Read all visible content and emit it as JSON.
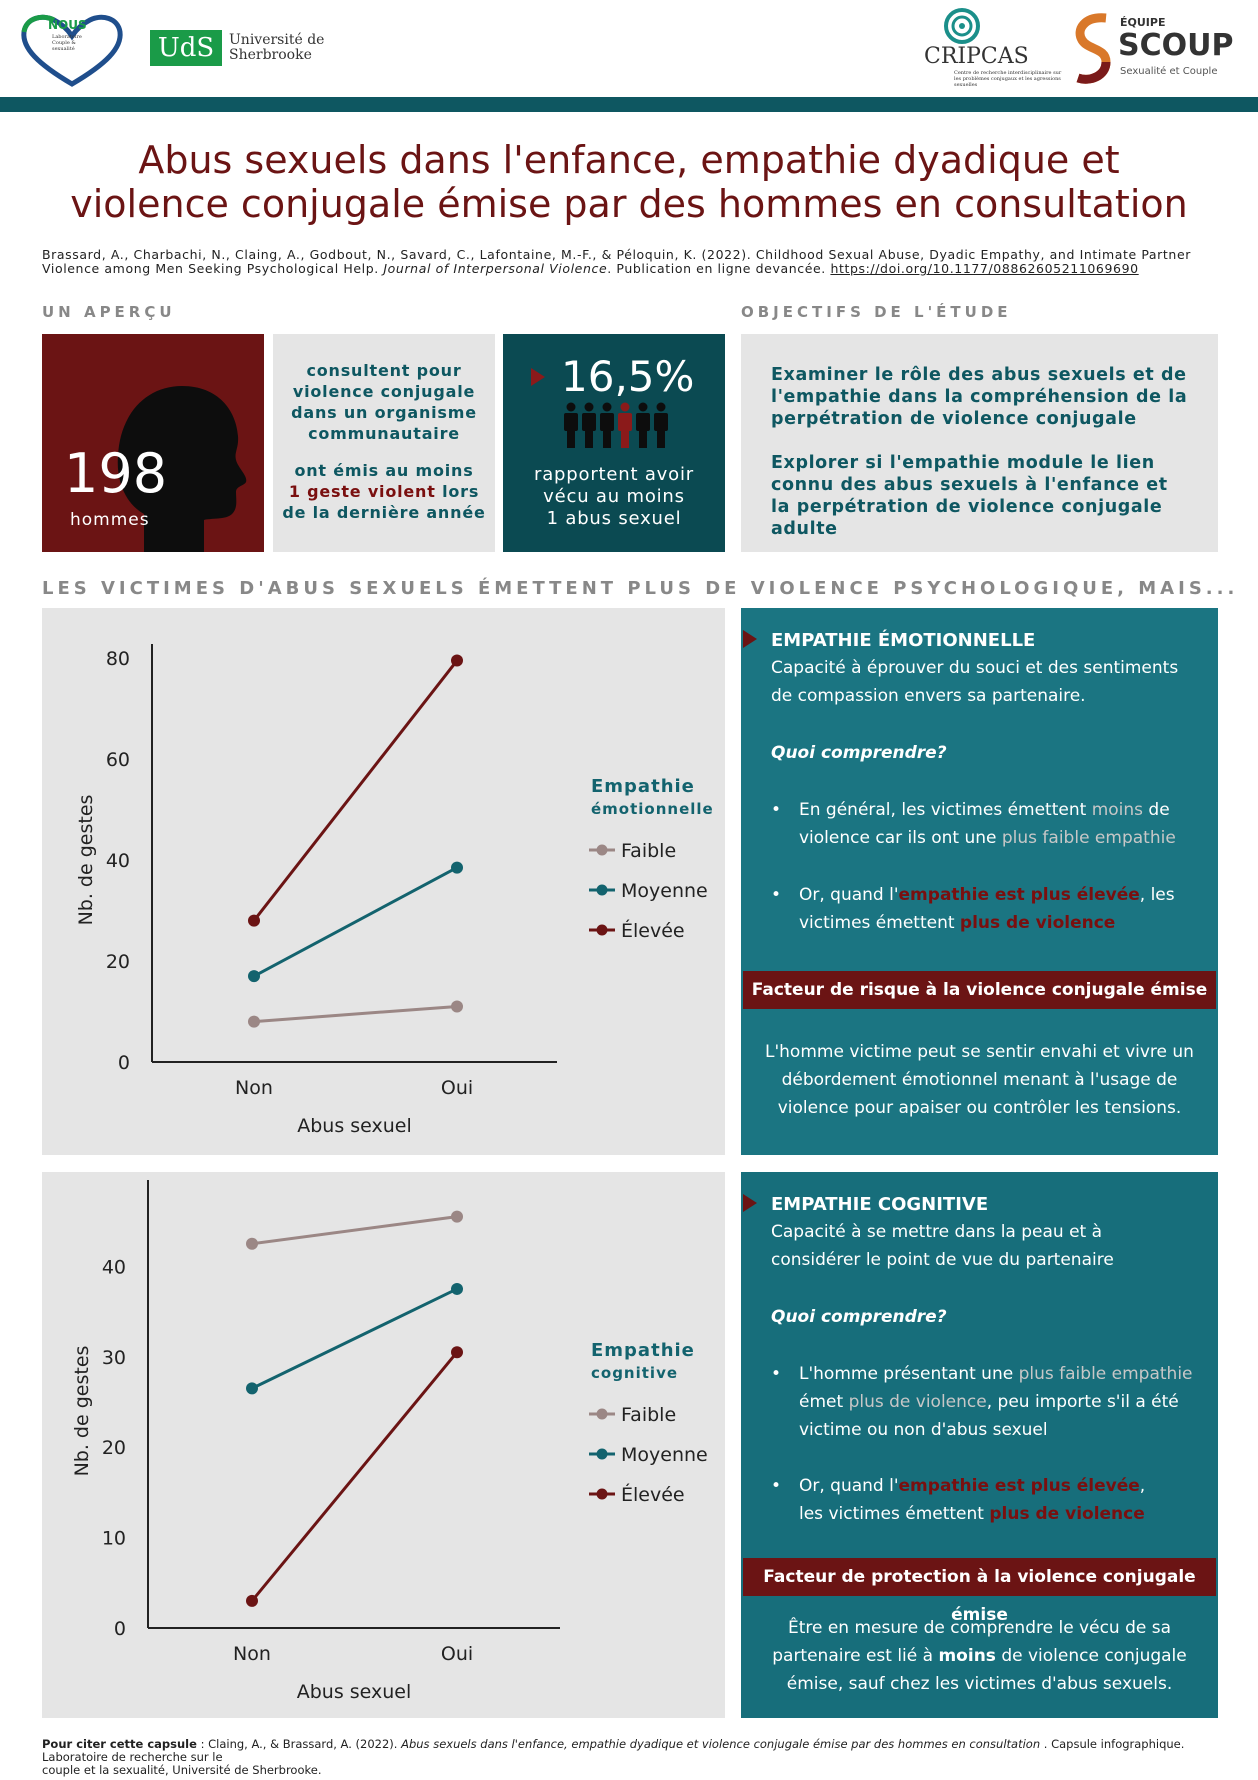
{
  "header": {
    "logo_nous": "NOUS",
    "logo_nous_sub": "Laboratoire Couple & sexualité",
    "logo_uds_mark": "UdS",
    "logo_uds_name_1": "Université de",
    "logo_uds_name_2": "Sherbrooke",
    "logo_cripcas": "CRIPCAS",
    "logo_cripcas_sub": "Centre de recherche interdisciplinaire sur les problèmes conjugaux et les agressions sexuelles",
    "logo_scoup_pre": "ÉQUIPE",
    "logo_scoup": "SCOUP",
    "logo_scoup_sub": "Sexualité et Couple"
  },
  "title_line1": "Abus sexuels dans l'enfance, empathie dyadique et",
  "title_line2": "violence conjugale émise par des hommes en consultation",
  "citation": {
    "text_1": "Brassard, A., Charbachi, N., Claing, A., Godbout, N., Savard, C., Lafontaine, M.-F., & Péloquin, K. (2022). Childhood Sexual Abuse, Dyadic Empathy, and Intimate Partner",
    "text_2a": "Violence among Men Seeking Psychological Help. ",
    "journal": "Journal of Interpersonal Violence",
    "text_2b": ". Publication en ligne devancée. ",
    "doi": "https://doi.org/10.1177/08862605211069690"
  },
  "apercu": {
    "label": "UN APERÇU",
    "n": "198",
    "n_label": "hommes",
    "consult_1": "consultent pour",
    "consult_2": "violence conjugale",
    "consult_3": "dans un organisme",
    "consult_4": "communautaire",
    "emis_1": "ont émis au moins",
    "emis_2a": "1 geste violent",
    "emis_2b": " lors",
    "emis_3": "de la dernière année",
    "pct": "16,5%",
    "pct_1": "rapportent avoir",
    "pct_2": "vécu au moins",
    "pct_3": "1 abus sexuel"
  },
  "objectifs": {
    "label": "OBJECTIFS DE L'ÉTUDE",
    "obj1": "Examiner le rôle des abus sexuels et de l'empathie  dans la compréhension de la perpétration de violence conjugale",
    "obj2": "Explorer si l'empathie module le lien connu des abus sexuels à l'enfance et la perpétration de violence conjugale adulte"
  },
  "section_heading": "LES VICTIMES D'ABUS SEXUELS ÉMETTENT PLUS DE VIOLENCE PSYCHOLOGIQUE, MAIS...",
  "emotionnelle": {
    "title": "EMPATHIE ÉMOTIONNELLE",
    "def_1": "Capacité à éprouver du souci et des sentiments",
    "def_2": "de compassion  envers sa partenaire.",
    "quoi": "Quoi comprendre?",
    "b1_a": "En général, les victimes émettent ",
    "b1_b": "moins",
    "b1_c": " de",
    "b1_d": "violence car ils ont une ",
    "b1_e": "plus faible empathie",
    "b2_a": "Or, quand l'",
    "b2_b": "empathie est plus élevée",
    "b2_c": ", les",
    "b2_d": "victimes émettent ",
    "b2_e": "plus de violence",
    "factor": "Facteur de risque à la violence conjugale émise",
    "factor_text_1": "L'homme victime peut se sentir envahi et vivre un",
    "factor_text_2": "débordement émotionnel menant à l'usage de",
    "factor_text_3": "violence pour apaiser ou contrôler les tensions."
  },
  "cognitive": {
    "title": "EMPATHIE COGNITIVE",
    "def_1": "Capacité à se mettre dans la peau et à",
    "def_2": "considérer le point de vue du partenaire",
    "quoi": "Quoi comprendre?",
    "b1_a": "L'homme présentant une ",
    "b1_b": "plus faible empathie",
    "b1_c": "émet ",
    "b1_d": "plus de violence",
    "b1_e": ", peu importe s'il a été",
    "b1_f": "victime ou non d'abus sexuel",
    "b2_a": "Or, quand l'",
    "b2_b": "empathie est plus élevée",
    "b2_c": ",",
    "b2_d": "les victimes  émettent ",
    "b2_e": "plus de violence",
    "factor": "Facteur de protection à la violence conjugale émise",
    "factor_text_1": "Être en mesure de comprendre le vécu de sa",
    "factor_text_2a": "partenaire est lié à ",
    "factor_text_2b": "moins",
    "factor_text_2c": " de violence conjugale",
    "factor_text_3": "émise, sauf chez les victimes d'abus sexuels."
  },
  "chart_data": [
    {
      "type": "line",
      "categories": [
        "Non",
        "Oui"
      ],
      "xlabel": "Abus sexuel",
      "ylabel": "Nb. de gestes",
      "ylim": [
        0,
        80
      ],
      "yticks": [
        0,
        20,
        40,
        60,
        80
      ],
      "legend_title_1": "Empathie",
      "legend_title_2": "émotionnelle",
      "legend_position": "right",
      "grid": false,
      "series": [
        {
          "name": "Faible",
          "values": [
            8,
            11
          ],
          "color": "#9b8785"
        },
        {
          "name": "Moyenne",
          "values": [
            17,
            38.5
          ],
          "color": "#13636e"
        },
        {
          "name": "Élevée",
          "values": [
            28,
            79.5
          ],
          "color": "#6b1414"
        }
      ]
    },
    {
      "type": "line",
      "categories": [
        "Non",
        "Oui"
      ],
      "xlabel": "Abus sexuel",
      "ylabel": "Nb. de gestes",
      "ylim": [
        0,
        48
      ],
      "yticks": [
        0,
        10,
        20,
        30,
        40
      ],
      "legend_title_1": "Empathie",
      "legend_title_2": "cognitive",
      "legend_position": "right",
      "grid": false,
      "series": [
        {
          "name": "Faible",
          "values": [
            42.5,
            45.5
          ],
          "color": "#9b8785"
        },
        {
          "name": "Moyenne",
          "values": [
            26.5,
            37.5
          ],
          "color": "#13636e"
        },
        {
          "name": "Élevée",
          "values": [
            3,
            30.5
          ],
          "color": "#6b1414"
        }
      ]
    }
  ],
  "footer": {
    "lead": "Pour citer cette capsule",
    "text_a": " : Claing, A., & Brassard, A. (2022). ",
    "title_it": "Abus sexuels dans l'enfance, empathie dyadique et violence conjugale émise par des hommes en consultation",
    "text_b": " . Capsule infographique. Laboratoire de recherche sur le",
    "text_c": "couple et la sexualité, Université de Sherbrooke."
  },
  "colors": {
    "teal": "#1b7582",
    "dark_teal": "#0b4a52",
    "maroon": "#6b1414",
    "grey_bg": "#e5e5e5"
  }
}
